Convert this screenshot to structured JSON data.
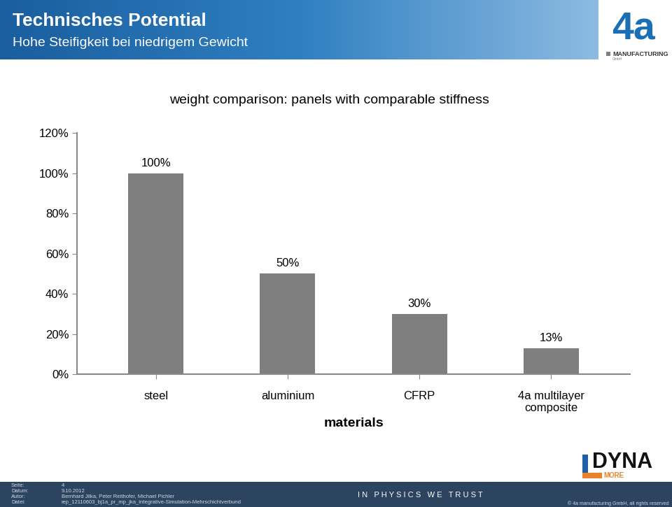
{
  "header": {
    "title": "Technisches Potential",
    "subtitle": "Hohe Steifigkeit bei niedrigem Gewicht"
  },
  "logos": {
    "company": {
      "mark": "4a",
      "name": "MANUFACTURING",
      "legal": "GmbH"
    },
    "partner": {
      "name": "DYNA",
      "suffix": "MORE"
    }
  },
  "chart_data": {
    "type": "bar",
    "title": "weight comparison: panels with comparable stiffness",
    "x_label": "materials",
    "categories": [
      "steel",
      "aluminium",
      "CFRP",
      "4a multilayer\ncomposite"
    ],
    "values": [
      100,
      50,
      30,
      13
    ],
    "value_labels": [
      "100%",
      "50%",
      "30%",
      "13%"
    ],
    "data_labels": true,
    "color": "#7f7f7f",
    "ylim": [
      0,
      120
    ],
    "yticks": [
      {
        "value": 0,
        "label": "0%"
      },
      {
        "value": 20,
        "label": "20%"
      },
      {
        "value": 40,
        "label": "40%"
      },
      {
        "value": 60,
        "label": "60%"
      },
      {
        "value": 80,
        "label": "80%"
      },
      {
        "value": 100,
        "label": "100%"
      },
      {
        "value": 120,
        "label": "120%"
      }
    ],
    "grid": false
  },
  "footer": {
    "fields": [
      {
        "label": "Seite:",
        "value": "4"
      },
      {
        "label": "Datum:",
        "value": "9.10.2012"
      },
      {
        "label": "Autor:",
        "value": "Bernhard Jilka, Peter Reithofer, Michael Pichler"
      },
      {
        "label": "Datei:",
        "value": "rep_12110603_bj1a_pr_mp_jka_integrative-Simulation-Mehrschichtverbund"
      }
    ],
    "tagline": "I N   P H Y S I C S   W E   T R U S T",
    "copyright": "© 4a manufacturing GmbH, all rights reserved"
  }
}
